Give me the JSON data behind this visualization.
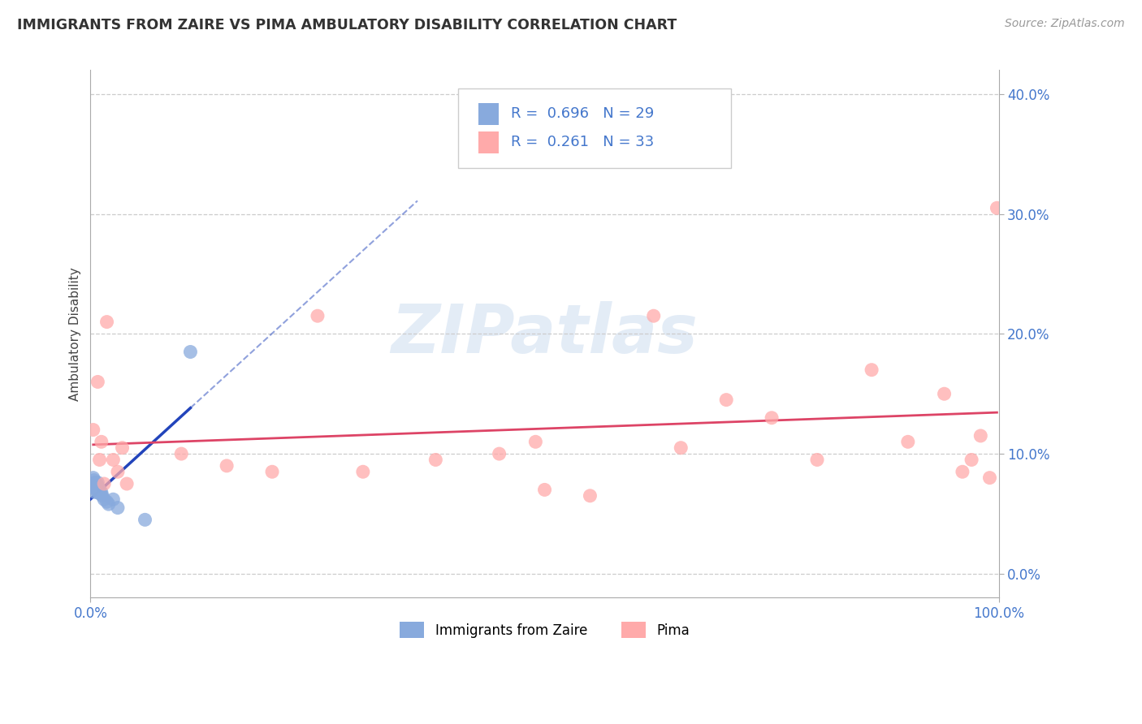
{
  "title": "IMMIGRANTS FROM ZAIRE VS PIMA AMBULATORY DISABILITY CORRELATION CHART",
  "source": "Source: ZipAtlas.com",
  "ylabel": "Ambulatory Disability",
  "legend_label1": "Immigrants from Zaire",
  "legend_label2": "Pima",
  "r1": 0.696,
  "n1": 29,
  "r2": 0.261,
  "n2": 33,
  "color_blue": "#88AADD",
  "color_pink": "#FFAAAA",
  "color_line_blue": "#2244BB",
  "color_line_pink": "#DD4466",
  "color_ytick": "#4477CC",
  "watermark_text": "ZIPatlas",
  "watermark_color": "#CCDDF0",
  "xlim": [
    0.0,
    1.0
  ],
  "ylim": [
    -0.02,
    0.42
  ],
  "yticks": [
    0.0,
    0.1,
    0.2,
    0.3,
    0.4
  ],
  "ytick_labels": [
    "0.0%",
    "10.0%",
    "20.0%",
    "30.0%",
    "40.0%"
  ],
  "blue_x": [
    0.002,
    0.003,
    0.004,
    0.004,
    0.005,
    0.005,
    0.005,
    0.006,
    0.006,
    0.007,
    0.007,
    0.007,
    0.008,
    0.008,
    0.008,
    0.009,
    0.009,
    0.01,
    0.01,
    0.011,
    0.012,
    0.013,
    0.015,
    0.018,
    0.02,
    0.025,
    0.03,
    0.06,
    0.11
  ],
  "blue_y": [
    0.075,
    0.08,
    0.072,
    0.078,
    0.068,
    0.073,
    0.076,
    0.071,
    0.074,
    0.069,
    0.072,
    0.075,
    0.07,
    0.073,
    0.076,
    0.068,
    0.071,
    0.067,
    0.07,
    0.067,
    0.068,
    0.065,
    0.062,
    0.06,
    0.058,
    0.062,
    0.055,
    0.045,
    0.185
  ],
  "pink_x": [
    0.003,
    0.008,
    0.01,
    0.012,
    0.015,
    0.018,
    0.025,
    0.03,
    0.035,
    0.04,
    0.1,
    0.15,
    0.2,
    0.25,
    0.3,
    0.38,
    0.45,
    0.49,
    0.5,
    0.55,
    0.62,
    0.65,
    0.7,
    0.75,
    0.8,
    0.86,
    0.9,
    0.94,
    0.96,
    0.97,
    0.98,
    0.99,
    0.998
  ],
  "pink_y": [
    0.12,
    0.16,
    0.095,
    0.11,
    0.075,
    0.21,
    0.095,
    0.085,
    0.105,
    0.075,
    0.1,
    0.09,
    0.085,
    0.215,
    0.085,
    0.095,
    0.1,
    0.11,
    0.07,
    0.065,
    0.215,
    0.105,
    0.145,
    0.13,
    0.095,
    0.17,
    0.11,
    0.15,
    0.085,
    0.095,
    0.115,
    0.08,
    0.305
  ]
}
